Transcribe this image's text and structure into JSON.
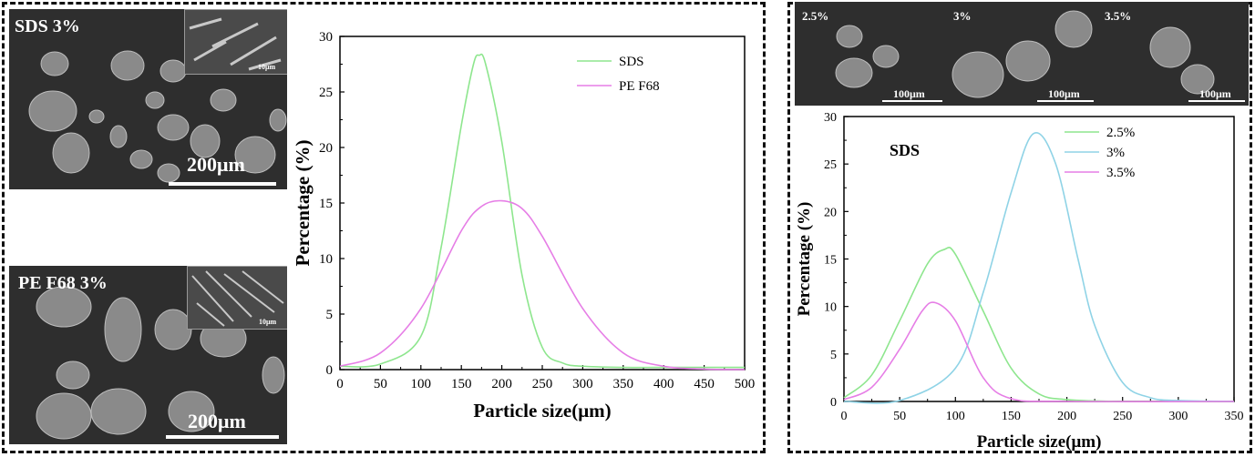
{
  "left_panel": {
    "sem_top": {
      "label": "SDS 3%",
      "scalebar": "200μm",
      "inset_scalebar": "10μm"
    },
    "sem_bottom": {
      "label": "PE F68 3%",
      "scalebar": "200μm",
      "inset_scalebar": "10μm"
    }
  },
  "right_panel": {
    "sem_strip": [
      {
        "label": "2.5%",
        "scalebar": "100μm"
      },
      {
        "label": "3%",
        "scalebar": "100μm"
      },
      {
        "label": "3.5%",
        "scalebar": "100μm"
      }
    ]
  },
  "colors": {
    "green": "#8ee68e",
    "magenta": "#e67ee6",
    "cyan": "#8fd3e6"
  },
  "chart_data": [
    {
      "type": "line",
      "title": "",
      "xlabel": "Particle size(μm)",
      "ylabel": "Percentage (%)",
      "xlim": [
        0,
        500
      ],
      "ylim": [
        0,
        30
      ],
      "xticks": [
        0,
        50,
        100,
        150,
        200,
        250,
        300,
        350,
        400,
        450,
        500
      ],
      "yticks": [
        0,
        5,
        10,
        15,
        20,
        25,
        30
      ],
      "legend_position": "top-right",
      "series": [
        {
          "name": "SDS",
          "color": "#8ee68e",
          "x": [
            0,
            50,
            100,
            125,
            150,
            165,
            172,
            180,
            200,
            225,
            250,
            275,
            300,
            350,
            400,
            500
          ],
          "y": [
            0.3,
            0.5,
            3.0,
            11.0,
            22.0,
            27.5,
            28.3,
            27.5,
            20.5,
            8.5,
            2.0,
            0.6,
            0.3,
            0.2,
            0.2,
            0.2
          ]
        },
        {
          "name": "PE F68",
          "color": "#e67ee6",
          "x": [
            0,
            50,
            100,
            150,
            175,
            200,
            225,
            250,
            300,
            350,
            400,
            450,
            500
          ],
          "y": [
            0.3,
            1.5,
            5.5,
            12.5,
            14.7,
            15.2,
            14.5,
            12.0,
            5.5,
            1.5,
            0.3,
            0.05,
            0.0
          ]
        }
      ]
    },
    {
      "type": "line",
      "title": "",
      "annotation": "SDS",
      "xlabel": "Particle size(μm)",
      "ylabel": "Percentage (%)",
      "xlim": [
        0,
        350
      ],
      "ylim": [
        0,
        30
      ],
      "xticks": [
        0,
        50,
        100,
        150,
        200,
        250,
        300,
        350
      ],
      "yticks": [
        0,
        5,
        10,
        15,
        20,
        25,
        30
      ],
      "legend_position": "top-center",
      "series": [
        {
          "name": "2.5%",
          "color": "#8ee68e",
          "x": [
            0,
            25,
            50,
            75,
            90,
            100,
            125,
            150,
            175,
            200,
            250,
            350
          ],
          "y": [
            0.4,
            2.8,
            8.5,
            14.5,
            16.0,
            15.5,
            9.5,
            3.5,
            0.8,
            0.2,
            0.0,
            0.0
          ]
        },
        {
          "name": "3%",
          "color": "#8fd3e6",
          "x": [
            0,
            50,
            100,
            125,
            150,
            170,
            190,
            210,
            225,
            250,
            275,
            300,
            350
          ],
          "y": [
            0.0,
            0.1,
            3.5,
            11.5,
            22.0,
            28.2,
            25.0,
            15.0,
            8.0,
            2.0,
            0.4,
            0.1,
            0.0
          ]
        },
        {
          "name": "3.5%",
          "color": "#e67ee6",
          "x": [
            0,
            25,
            50,
            70,
            82,
            100,
            125,
            150,
            200,
            350
          ],
          "y": [
            0.2,
            1.5,
            5.5,
            9.5,
            10.4,
            8.5,
            2.5,
            0.3,
            0.0,
            0.0
          ]
        }
      ]
    }
  ]
}
